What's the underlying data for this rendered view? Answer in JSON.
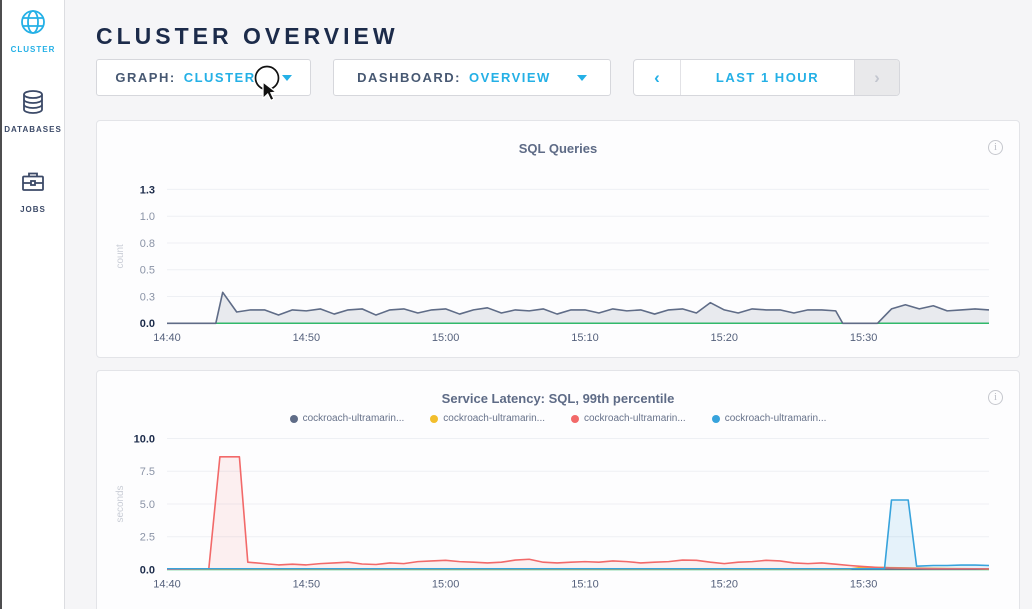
{
  "header": {
    "title": "CLUSTER OVERVIEW"
  },
  "sidebar": {
    "items": [
      {
        "label": "CLUSTER",
        "icon": "globe-icon",
        "active": true
      },
      {
        "label": "DATABASES",
        "icon": "databases-icon",
        "active": false
      },
      {
        "label": "JOBS",
        "icon": "briefcase-icon",
        "active": false
      }
    ]
  },
  "toolbar": {
    "graph": {
      "label": "GRAPH:",
      "value": "CLUSTER"
    },
    "dashboard": {
      "label": "DASHBOARD:",
      "value": "OVERVIEW"
    },
    "timerange": {
      "prev": "‹",
      "label": "LAST 1 HOUR",
      "next": "›",
      "next_disabled": true
    }
  },
  "colors": {
    "accent": "#24b0e6",
    "navy": "#1c2b4a",
    "slate_text": "#475872",
    "axis_green": "#2ebd69",
    "series_slate": "#5f6c87",
    "series_yellow": "#f2be2c",
    "series_red": "#f26969",
    "series_blue": "#37a3dc"
  },
  "chart_data": [
    {
      "type": "area",
      "title": "SQL Queries",
      "ylabel": "count",
      "ylim": [
        0,
        1.3
      ],
      "y_ticks": [
        "0.0",
        "0.3",
        "0.5",
        "0.8",
        "1.0",
        "1.3"
      ],
      "x_ticks": [
        "14:40",
        "14:50",
        "15:00",
        "15:10",
        "15:20",
        "15:30"
      ],
      "x_range_minutes": [
        0,
        59
      ],
      "grid": "faint",
      "legend_position": "none",
      "series": [
        {
          "name": "sql-queries",
          "color": "#5f6c87",
          "points": [
            [
              0,
              0
            ],
            [
              3.5,
              0
            ],
            [
              4,
              0.3
            ],
            [
              5,
              0.11
            ],
            [
              6,
              0.13
            ],
            [
              7,
              0.13
            ],
            [
              8,
              0.08
            ],
            [
              9,
              0.13
            ],
            [
              10,
              0.12
            ],
            [
              11,
              0.14
            ],
            [
              12,
              0.09
            ],
            [
              13,
              0.13
            ],
            [
              14,
              0.14
            ],
            [
              15,
              0.08
            ],
            [
              16,
              0.13
            ],
            [
              17,
              0.14
            ],
            [
              18,
              0.1
            ],
            [
              19,
              0.13
            ],
            [
              20,
              0.14
            ],
            [
              21,
              0.09
            ],
            [
              22,
              0.13
            ],
            [
              23,
              0.15
            ],
            [
              24,
              0.1
            ],
            [
              25,
              0.13
            ],
            [
              26,
              0.12
            ],
            [
              27,
              0.14
            ],
            [
              28,
              0.09
            ],
            [
              29,
              0.13
            ],
            [
              30,
              0.13
            ],
            [
              31,
              0.1
            ],
            [
              32,
              0.14
            ],
            [
              33,
              0.12
            ],
            [
              34,
              0.13
            ],
            [
              35,
              0.09
            ],
            [
              36,
              0.13
            ],
            [
              37,
              0.14
            ],
            [
              38,
              0.1
            ],
            [
              39,
              0.2
            ],
            [
              40,
              0.13
            ],
            [
              41,
              0.1
            ],
            [
              42,
              0.14
            ],
            [
              43,
              0.13
            ],
            [
              44,
              0.13
            ],
            [
              45,
              0.1
            ],
            [
              46,
              0.13
            ],
            [
              47,
              0.13
            ],
            [
              48,
              0.12
            ],
            [
              48.5,
              0
            ],
            [
              51,
              0
            ],
            [
              52,
              0.14
            ],
            [
              53,
              0.18
            ],
            [
              54,
              0.14
            ],
            [
              55,
              0.17
            ],
            [
              56,
              0.12
            ],
            [
              57,
              0.13
            ],
            [
              58,
              0.14
            ],
            [
              59,
              0.13
            ]
          ]
        }
      ]
    },
    {
      "type": "area",
      "title": "Service Latency: SQL, 99th percentile",
      "ylabel": "seconds",
      "ylim": [
        0,
        10
      ],
      "y_ticks": [
        "0.0",
        "2.5",
        "5.0",
        "7.5",
        "10.0"
      ],
      "x_ticks": [
        "14:40",
        "14:50",
        "15:00",
        "15:10",
        "15:20",
        "15:30"
      ],
      "x_range_minutes": [
        0,
        59
      ],
      "grid": "faint",
      "legend_position": "top",
      "series": [
        {
          "name": "cockroach-ultramarin...",
          "color": "#5f6c87",
          "points": [
            [
              0,
              0.02
            ],
            [
              59,
              0.02
            ]
          ]
        },
        {
          "name": "cockroach-ultramarin...",
          "color": "#f2be2c",
          "points": [
            [
              0,
              0.03
            ],
            [
              49,
              0.03
            ],
            [
              50,
              0.18
            ],
            [
              52,
              0.14
            ],
            [
              54,
              0.1
            ],
            [
              56,
              0.07
            ],
            [
              58,
              0.05
            ],
            [
              59,
              0.04
            ]
          ]
        },
        {
          "name": "cockroach-ultramarin...",
          "color": "#f26969",
          "points": [
            [
              0,
              0.02
            ],
            [
              3,
              0.05
            ],
            [
              3.8,
              8.6
            ],
            [
              5.2,
              8.6
            ],
            [
              5.8,
              0.55
            ],
            [
              7,
              0.45
            ],
            [
              8,
              0.35
            ],
            [
              9,
              0.4
            ],
            [
              10,
              0.35
            ],
            [
              11,
              0.45
            ],
            [
              12,
              0.5
            ],
            [
              13,
              0.55
            ],
            [
              14,
              0.42
            ],
            [
              15,
              0.38
            ],
            [
              16,
              0.5
            ],
            [
              17,
              0.45
            ],
            [
              18,
              0.6
            ],
            [
              19,
              0.65
            ],
            [
              20,
              0.7
            ],
            [
              21,
              0.6
            ],
            [
              22,
              0.55
            ],
            [
              23,
              0.5
            ],
            [
              24,
              0.55
            ],
            [
              25,
              0.72
            ],
            [
              26,
              0.78
            ],
            [
              27,
              0.55
            ],
            [
              28,
              0.5
            ],
            [
              29,
              0.55
            ],
            [
              30,
              0.6
            ],
            [
              31,
              0.55
            ],
            [
              32,
              0.65
            ],
            [
              33,
              0.6
            ],
            [
              34,
              0.5
            ],
            [
              35,
              0.55
            ],
            [
              36,
              0.6
            ],
            [
              37,
              0.72
            ],
            [
              38,
              0.7
            ],
            [
              39,
              0.55
            ],
            [
              40,
              0.45
            ],
            [
              41,
              0.55
            ],
            [
              42,
              0.6
            ],
            [
              43,
              0.7
            ],
            [
              44,
              0.65
            ],
            [
              45,
              0.5
            ],
            [
              46,
              0.45
            ],
            [
              47,
              0.5
            ],
            [
              48,
              0.4
            ],
            [
              49,
              0.3
            ],
            [
              50,
              0.22
            ],
            [
              51,
              0.15
            ],
            [
              52,
              0.12
            ],
            [
              53,
              0.1
            ],
            [
              54,
              0.08
            ],
            [
              55,
              0.06
            ],
            [
              56,
              0.05
            ],
            [
              57,
              0.05
            ],
            [
              58,
              0.05
            ],
            [
              59,
              0.05
            ]
          ]
        },
        {
          "name": "cockroach-ultramarin...",
          "color": "#37a3dc",
          "points": [
            [
              0,
              0.05
            ],
            [
              51.5,
              0.05
            ],
            [
              52,
              5.3
            ],
            [
              53.2,
              5.3
            ],
            [
              53.8,
              0.25
            ],
            [
              55,
              0.3
            ],
            [
              56,
              0.3
            ],
            [
              57,
              0.33
            ],
            [
              58,
              0.33
            ],
            [
              59,
              0.3
            ]
          ]
        }
      ]
    }
  ]
}
